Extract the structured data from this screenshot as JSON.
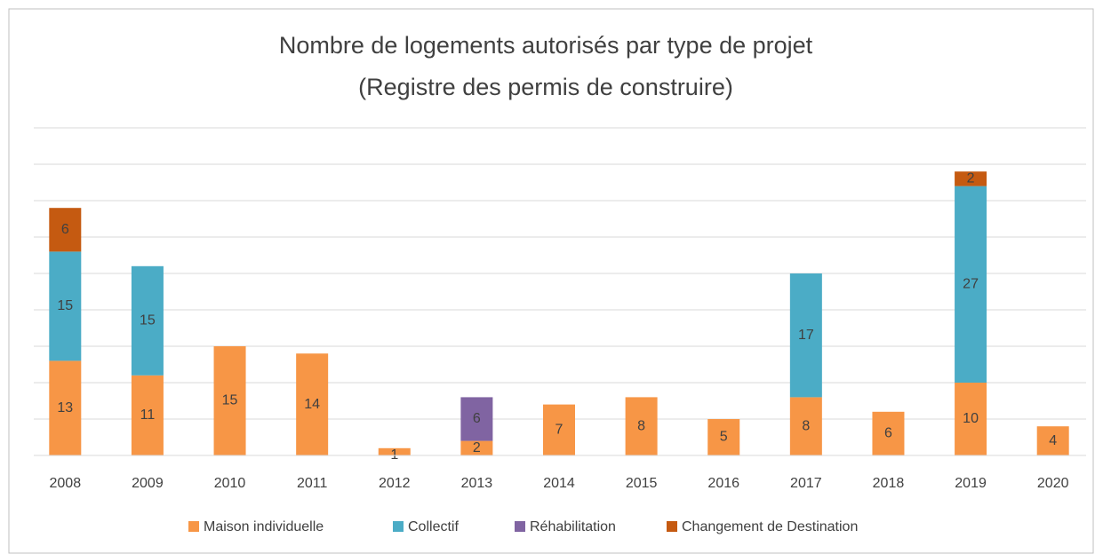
{
  "chart_data": {
    "type": "stacked_bar",
    "title": [
      "Nombre de logements autorisés par type de projet",
      "(Registre des permis de construire)"
    ],
    "categories": [
      "2008",
      "2009",
      "2010",
      "2011",
      "2012",
      "2013",
      "2014",
      "2015",
      "2016",
      "2017",
      "2018",
      "2019",
      "2020"
    ],
    "series": [
      {
        "name": "Maison individuelle",
        "color": "#f79646",
        "values": [
          13,
          11,
          15,
          14,
          1,
          2,
          7,
          8,
          5,
          8,
          6,
          10,
          4
        ]
      },
      {
        "name": "Collectif",
        "color": "#4bacc6",
        "values": [
          15,
          15,
          null,
          null,
          null,
          null,
          null,
          null,
          null,
          17,
          null,
          27,
          null
        ]
      },
      {
        "name": "Réhabilitation",
        "color": "#8064a2",
        "values": [
          null,
          null,
          null,
          null,
          null,
          6,
          null,
          null,
          null,
          null,
          null,
          null,
          null
        ]
      },
      {
        "name": "Changement de Destination",
        "color": "#c55a11",
        "values": [
          6,
          null,
          null,
          null,
          null,
          null,
          null,
          null,
          null,
          null,
          null,
          2,
          null
        ]
      }
    ],
    "ylim": [
      0,
      45
    ],
    "yticks": [
      0,
      5,
      10,
      15,
      20,
      25,
      30,
      35,
      40,
      45
    ],
    "grid": true,
    "legend": "bottom"
  }
}
